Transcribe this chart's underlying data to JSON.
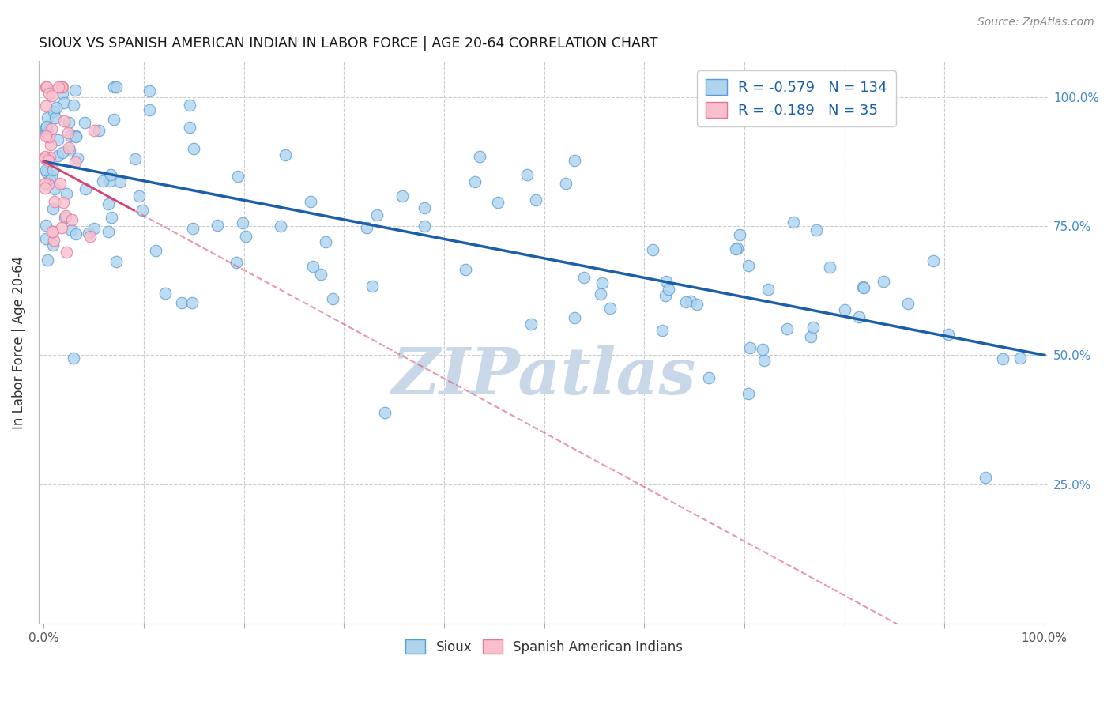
{
  "title": "SIOUX VS SPANISH AMERICAN INDIAN IN LABOR FORCE | AGE 20-64 CORRELATION CHART",
  "source": "Source: ZipAtlas.com",
  "ylabel": "In Labor Force | Age 20-64",
  "sioux_R": -0.579,
  "sioux_N": 134,
  "spanish_R": -0.189,
  "spanish_N": 35,
  "sioux_color": "#aed4ee",
  "sioux_edge_color": "#5b9bd5",
  "spanish_color": "#f9bfcd",
  "spanish_edge_color": "#e07898",
  "sioux_line_color": "#1a5fa8",
  "spanish_line_color": "#d94070",
  "watermark": "ZIPatlas",
  "watermark_color": "#c8d8e8",
  "grid_color": "#cccccc",
  "y_right_color": "#4488cc",
  "sioux_line_intercept": 0.875,
  "sioux_line_slope": -0.375,
  "spanish_line_intercept": 0.875,
  "spanish_line_slope": -1.05
}
